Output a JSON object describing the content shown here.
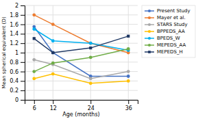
{
  "chart_data": {
    "type": "line",
    "x": [
      6,
      12,
      24,
      36
    ],
    "series": [
      {
        "name": "Present Study",
        "color": "#4472C4",
        "marker": "circle",
        "values": [
          1.55,
          1.0,
          0.5,
          0.5
        ]
      },
      {
        "name": "Mayer et al.",
        "color": "#ED7D31",
        "marker": "circle",
        "values": [
          1.8,
          1.6,
          1.2,
          1.0
        ]
      },
      {
        "name": "STARS Study",
        "color": "#A9A9A9",
        "marker": "circle",
        "values": [
          0.85,
          0.75,
          0.45,
          0.6
        ]
      },
      {
        "name": "BPPEDS_AA",
        "color": "#FFC000",
        "marker": "circle",
        "values": [
          0.45,
          0.55,
          0.35,
          0.4
        ]
      },
      {
        "name": "BPEDS_W",
        "color": "#00B0F0",
        "marker": "circle",
        "values": [
          1.5,
          1.25,
          1.2,
          1.05
        ]
      },
      {
        "name": "MEPEDS_AA",
        "color": "#70AD47",
        "marker": "circle",
        "values": [
          0.6,
          0.78,
          0.9,
          1.08
        ]
      },
      {
        "name": "MEPEDS_H",
        "color": "#1F3864",
        "marker": "square",
        "values": [
          1.3,
          1.0,
          1.1,
          1.35
        ]
      }
    ],
    "xlabel": "Age (months)",
    "ylabel": "Mean spherical equivalent (D)",
    "xlim": [
      3,
      39
    ],
    "xticks": [
      6,
      12,
      24,
      36
    ],
    "ylim": [
      0,
      2.0
    ],
    "yticks": [
      0,
      0.2,
      0.4,
      0.6,
      0.8,
      1,
      1.2,
      1.4,
      1.6,
      1.8,
      2
    ],
    "grid": true,
    "legend": "right"
  }
}
